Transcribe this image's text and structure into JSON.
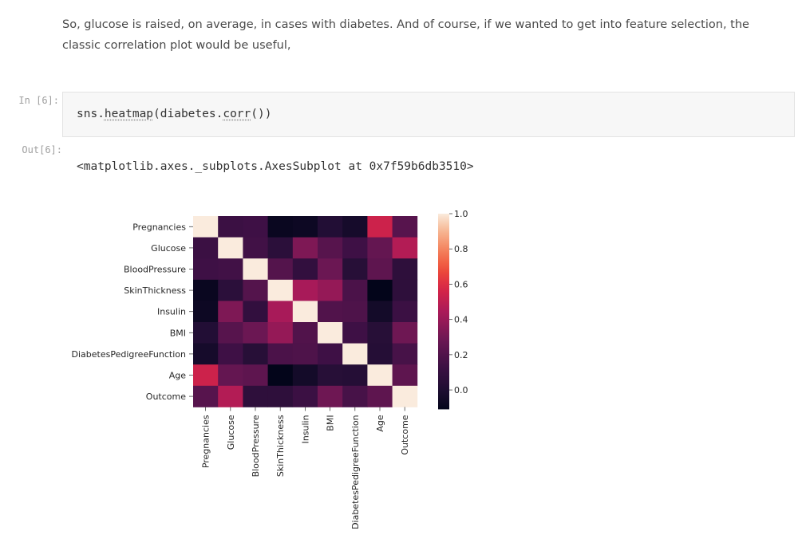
{
  "markdown": {
    "paragraph": "So, glucose is raised, on average, in cases with diabetes. And of course, if we wanted to get into feature selection, the classic correlation plot would be useful,"
  },
  "input_cell": {
    "prompt": "In [6]:",
    "code_prefix": "sns.",
    "code_fn1": "heatmap",
    "code_mid": "(diabetes.",
    "code_fn2": "corr",
    "code_suffix": "())"
  },
  "output_cell": {
    "prompt": "Out[6]:",
    "text": "<matplotlib.axes._subplots.AxesSubplot at 0x7f59b6db3510>"
  },
  "chart_data": {
    "type": "heatmap",
    "title": "",
    "labels": [
      "Pregnancies",
      "Glucose",
      "BloodPressure",
      "SkinThickness",
      "Insulin",
      "BMI",
      "DiabetesPedigreeFunction",
      "Age",
      "Outcome"
    ],
    "matrix": [
      [
        1.0,
        0.13,
        0.14,
        -0.08,
        -0.07,
        0.02,
        -0.03,
        0.54,
        0.22
      ],
      [
        0.13,
        1.0,
        0.15,
        0.06,
        0.33,
        0.22,
        0.14,
        0.26,
        0.47
      ],
      [
        0.14,
        0.15,
        1.0,
        0.21,
        0.09,
        0.28,
        0.04,
        0.24,
        0.07
      ],
      [
        -0.08,
        0.06,
        0.21,
        1.0,
        0.44,
        0.39,
        0.18,
        -0.11,
        0.07
      ],
      [
        -0.07,
        0.33,
        0.09,
        0.44,
        1.0,
        0.2,
        0.19,
        -0.04,
        0.13
      ],
      [
        0.02,
        0.22,
        0.28,
        0.39,
        0.2,
        1.0,
        0.14,
        0.04,
        0.29
      ],
      [
        -0.03,
        0.14,
        0.04,
        0.18,
        0.19,
        0.14,
        1.0,
        0.03,
        0.17
      ],
      [
        0.54,
        0.26,
        0.24,
        -0.11,
        -0.04,
        0.04,
        0.03,
        1.0,
        0.24
      ],
      [
        0.22,
        0.47,
        0.07,
        0.07,
        0.13,
        0.29,
        0.17,
        0.24,
        1.0
      ]
    ],
    "vmin": -0.11,
    "vmax": 1.0,
    "colorbar_ticks": [
      "0.0",
      "0.2",
      "0.4",
      "0.6",
      "0.8",
      "1.0"
    ],
    "colormap": "rocket"
  }
}
